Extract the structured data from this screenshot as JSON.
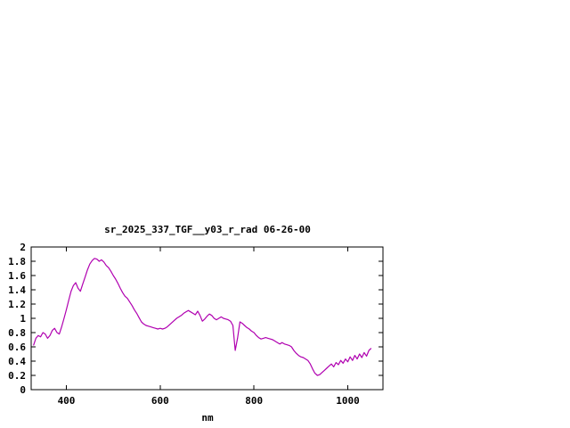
{
  "chart_data": {
    "type": "line",
    "title": "sr_2025_337_TGF__y03_r_rad 06-26-00",
    "xlabel": "nm",
    "ylabel": "",
    "xlim": [
      325,
      1075
    ],
    "ylim": [
      0,
      2
    ],
    "x_ticks": [
      400,
      600,
      800,
      1000
    ],
    "x_tick_labels": [
      "400",
      "600",
      "800",
      "1000"
    ],
    "y_ticks": [
      0,
      0.2,
      0.4,
      0.6,
      0.8,
      1,
      1.2,
      1.4,
      1.6,
      1.8,
      2
    ],
    "y_tick_labels": [
      "0",
      "0.2",
      "0.4",
      "0.6",
      "0.8",
      "1",
      "1.2",
      "1.4",
      "1.6",
      "1.8",
      "2"
    ],
    "line_color": "#b000b0",
    "grid": false,
    "legend": "none",
    "x": [
      330,
      335,
      340,
      345,
      350,
      355,
      360,
      365,
      370,
      375,
      380,
      385,
      390,
      395,
      400,
      405,
      410,
      415,
      420,
      425,
      430,
      435,
      440,
      445,
      450,
      455,
      460,
      465,
      470,
      475,
      480,
      485,
      490,
      495,
      500,
      505,
      510,
      515,
      520,
      525,
      530,
      535,
      540,
      545,
      550,
      555,
      560,
      565,
      570,
      575,
      580,
      585,
      590,
      595,
      600,
      605,
      610,
      615,
      620,
      625,
      630,
      635,
      640,
      645,
      650,
      655,
      660,
      665,
      670,
      675,
      680,
      685,
      690,
      695,
      700,
      705,
      710,
      715,
      720,
      725,
      730,
      735,
      740,
      745,
      750,
      755,
      760,
      765,
      770,
      775,
      780,
      785,
      790,
      795,
      800,
      805,
      810,
      815,
      820,
      825,
      830,
      835,
      840,
      845,
      850,
      855,
      860,
      865,
      870,
      875,
      880,
      885,
      890,
      895,
      900,
      905,
      910,
      915,
      920,
      925,
      930,
      935,
      940,
      945,
      950,
      955,
      960,
      965,
      970,
      975,
      980,
      985,
      990,
      995,
      1000,
      1005,
      1010,
      1015,
      1020,
      1025,
      1030,
      1035,
      1040,
      1045,
      1050
    ],
    "y": [
      0.62,
      0.72,
      0.76,
      0.74,
      0.8,
      0.78,
      0.72,
      0.76,
      0.83,
      0.86,
      0.8,
      0.78,
      0.88,
      1.0,
      1.12,
      1.25,
      1.38,
      1.46,
      1.5,
      1.42,
      1.38,
      1.48,
      1.58,
      1.68,
      1.76,
      1.81,
      1.84,
      1.83,
      1.8,
      1.82,
      1.79,
      1.74,
      1.71,
      1.66,
      1.6,
      1.55,
      1.49,
      1.42,
      1.36,
      1.31,
      1.28,
      1.23,
      1.18,
      1.12,
      1.07,
      1.01,
      0.95,
      0.92,
      0.9,
      0.89,
      0.88,
      0.87,
      0.86,
      0.85,
      0.86,
      0.85,
      0.86,
      0.88,
      0.91,
      0.94,
      0.97,
      1.0,
      1.02,
      1.04,
      1.07,
      1.09,
      1.11,
      1.09,
      1.07,
      1.05,
      1.1,
      1.04,
      0.96,
      0.99,
      1.03,
      1.06,
      1.04,
      1.0,
      0.98,
      1.0,
      1.02,
      1.0,
      0.99,
      0.98,
      0.96,
      0.9,
      0.55,
      0.72,
      0.95,
      0.93,
      0.9,
      0.87,
      0.85,
      0.82,
      0.8,
      0.76,
      0.73,
      0.71,
      0.72,
      0.73,
      0.72,
      0.71,
      0.7,
      0.68,
      0.66,
      0.64,
      0.66,
      0.64,
      0.63,
      0.62,
      0.6,
      0.55,
      0.51,
      0.48,
      0.46,
      0.45,
      0.43,
      0.41,
      0.36,
      0.29,
      0.23,
      0.2,
      0.21,
      0.24,
      0.27,
      0.3,
      0.33,
      0.36,
      0.32,
      0.38,
      0.35,
      0.41,
      0.37,
      0.43,
      0.39,
      0.46,
      0.41,
      0.48,
      0.43,
      0.5,
      0.45,
      0.52,
      0.47,
      0.55,
      0.58
    ]
  }
}
